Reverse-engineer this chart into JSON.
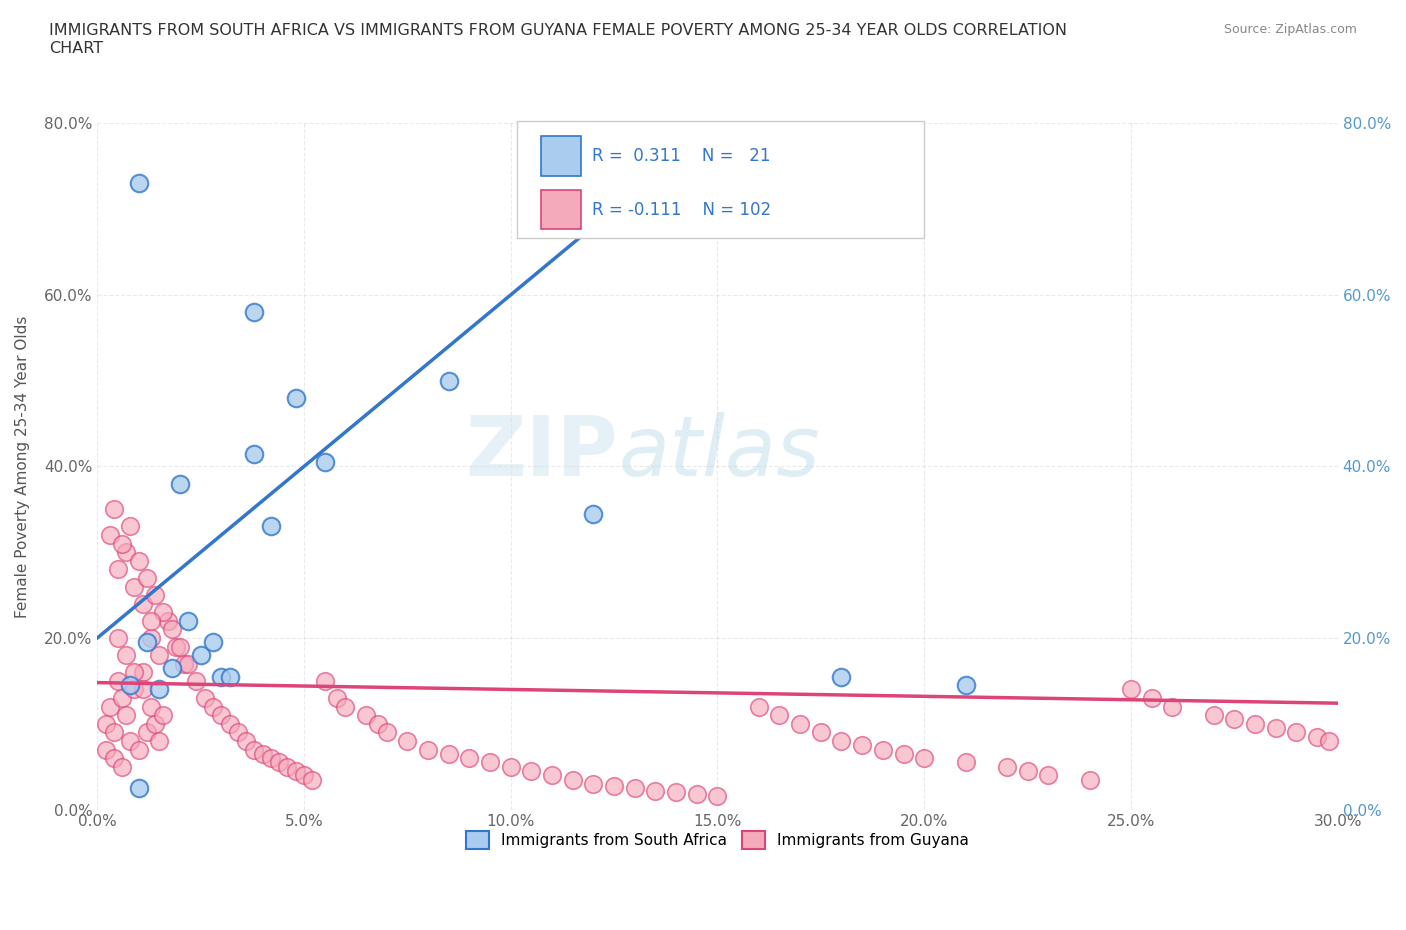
{
  "title": "IMMIGRANTS FROM SOUTH AFRICA VS IMMIGRANTS FROM GUYANA FEMALE POVERTY AMONG 25-34 YEAR OLDS CORRELATION\nCHART",
  "source_text": "Source: ZipAtlas.com",
  "ylabel": "Female Poverty Among 25-34 Year Olds",
  "xlim": [
    0.0,
    0.3
  ],
  "ylim": [
    0.0,
    0.8
  ],
  "xtick_labels": [
    "0.0%",
    "5.0%",
    "10.0%",
    "15.0%",
    "20.0%",
    "25.0%",
    "30.0%"
  ],
  "xtick_vals": [
    0.0,
    0.05,
    0.1,
    0.15,
    0.2,
    0.25,
    0.3
  ],
  "ytick_labels": [
    "0.0%",
    "20.0%",
    "40.0%",
    "60.0%",
    "80.0%"
  ],
  "ytick_vals": [
    0.0,
    0.2,
    0.4,
    0.6,
    0.8
  ],
  "color_sa": "#aaccee",
  "color_gy": "#f5aabb",
  "line_color_sa": "#3377cc",
  "line_color_gy": "#dd4477",
  "dashed_color": "#99bbcc",
  "right_axis_color": "#5599cc",
  "R_sa": 0.311,
  "N_sa": 21,
  "R_gy": -0.111,
  "N_gy": 102,
  "legend_label_sa": "Immigrants from South Africa",
  "legend_label_gy": "Immigrants from Guyana",
  "watermark_zip": "ZIP",
  "watermark_atlas": "atlas",
  "sa_x": [
    0.008,
    0.01,
    0.012,
    0.015,
    0.018,
    0.02,
    0.022,
    0.025,
    0.028,
    0.03,
    0.032,
    0.038,
    0.042,
    0.048,
    0.055,
    0.085,
    0.12,
    0.18,
    0.21,
    0.038,
    0.01
  ],
  "sa_y": [
    0.145,
    0.73,
    0.195,
    0.14,
    0.165,
    0.38,
    0.22,
    0.18,
    0.195,
    0.155,
    0.155,
    0.415,
    0.33,
    0.48,
    0.405,
    0.5,
    0.345,
    0.155,
    0.145,
    0.58,
    0.025
  ],
  "gy_x": [
    0.002,
    0.003,
    0.004,
    0.005,
    0.006,
    0.007,
    0.008,
    0.009,
    0.01,
    0.011,
    0.012,
    0.013,
    0.014,
    0.015,
    0.016,
    0.003,
    0.005,
    0.007,
    0.009,
    0.011,
    0.013,
    0.015,
    0.017,
    0.019,
    0.021,
    0.004,
    0.006,
    0.008,
    0.01,
    0.012,
    0.014,
    0.016,
    0.018,
    0.02,
    0.022,
    0.024,
    0.026,
    0.028,
    0.03,
    0.032,
    0.034,
    0.036,
    0.038,
    0.04,
    0.042,
    0.044,
    0.046,
    0.048,
    0.05,
    0.052,
    0.055,
    0.058,
    0.06,
    0.065,
    0.068,
    0.07,
    0.075,
    0.08,
    0.085,
    0.09,
    0.095,
    0.1,
    0.105,
    0.11,
    0.115,
    0.12,
    0.125,
    0.13,
    0.135,
    0.14,
    0.145,
    0.15,
    0.16,
    0.165,
    0.17,
    0.175,
    0.18,
    0.185,
    0.19,
    0.195,
    0.2,
    0.21,
    0.22,
    0.225,
    0.23,
    0.24,
    0.25,
    0.255,
    0.26,
    0.27,
    0.275,
    0.28,
    0.285,
    0.29,
    0.295,
    0.298,
    0.005,
    0.007,
    0.009,
    0.011,
    0.013,
    0.002,
    0.004,
    0.006
  ],
  "gy_y": [
    0.1,
    0.12,
    0.09,
    0.15,
    0.13,
    0.11,
    0.08,
    0.14,
    0.07,
    0.16,
    0.09,
    0.12,
    0.1,
    0.08,
    0.11,
    0.32,
    0.28,
    0.3,
    0.26,
    0.24,
    0.2,
    0.18,
    0.22,
    0.19,
    0.17,
    0.35,
    0.31,
    0.33,
    0.29,
    0.27,
    0.25,
    0.23,
    0.21,
    0.19,
    0.17,
    0.15,
    0.13,
    0.12,
    0.11,
    0.1,
    0.09,
    0.08,
    0.07,
    0.065,
    0.06,
    0.055,
    0.05,
    0.045,
    0.04,
    0.035,
    0.15,
    0.13,
    0.12,
    0.11,
    0.1,
    0.09,
    0.08,
    0.07,
    0.065,
    0.06,
    0.055,
    0.05,
    0.045,
    0.04,
    0.035,
    0.03,
    0.028,
    0.025,
    0.022,
    0.02,
    0.018,
    0.016,
    0.12,
    0.11,
    0.1,
    0.09,
    0.08,
    0.075,
    0.07,
    0.065,
    0.06,
    0.055,
    0.05,
    0.045,
    0.04,
    0.035,
    0.14,
    0.13,
    0.12,
    0.11,
    0.105,
    0.1,
    0.095,
    0.09,
    0.085,
    0.08,
    0.2,
    0.18,
    0.16,
    0.14,
    0.22,
    0.07,
    0.06,
    0.05
  ]
}
